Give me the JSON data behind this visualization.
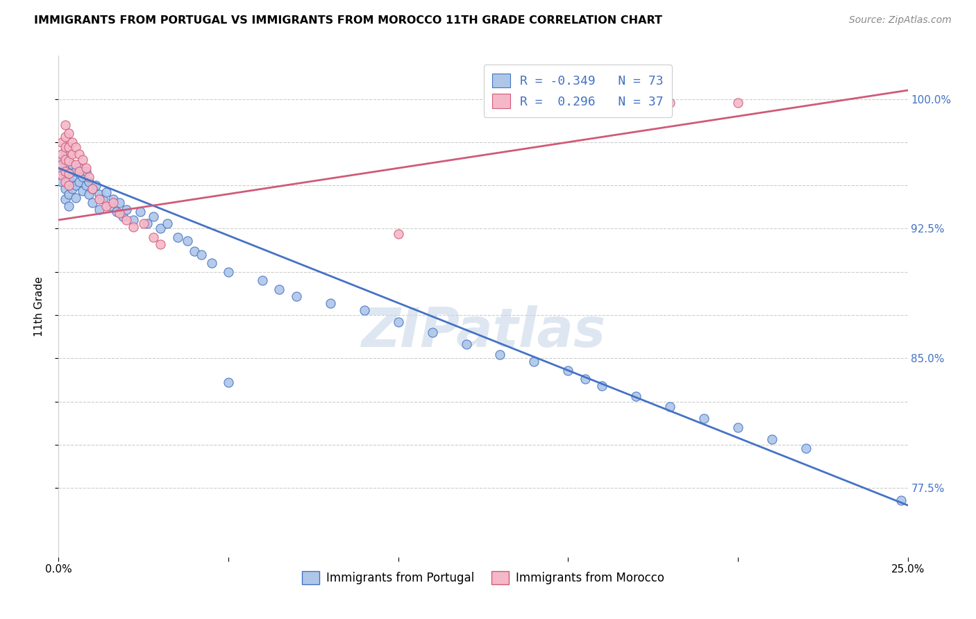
{
  "title": "IMMIGRANTS FROM PORTUGAL VS IMMIGRANTS FROM MOROCCO 11TH GRADE CORRELATION CHART",
  "source": "Source: ZipAtlas.com",
  "ylabel": "11th Grade",
  "legend_label_blue": "Immigrants from Portugal",
  "legend_label_pink": "Immigrants from Morocco",
  "watermark": "ZIPatlas",
  "blue_color": "#aec6e8",
  "pink_color": "#f5b8c8",
  "line_blue": "#4472c4",
  "line_pink": "#d05a78",
  "xmin": 0.0,
  "xmax": 0.25,
  "ymin": 0.735,
  "ymax": 1.025,
  "y_tick_positions": [
    0.775,
    0.8,
    0.825,
    0.85,
    0.875,
    0.9,
    0.925,
    0.95,
    0.975,
    1.0
  ],
  "y_tick_labels": [
    "77.5%",
    "",
    "",
    "85.0%",
    "",
    "",
    "92.5%",
    "",
    "",
    "100.0%"
  ],
  "x_ticks": [
    0.0,
    0.05,
    0.1,
    0.15,
    0.2,
    0.25
  ],
  "x_tick_labels": [
    "0.0%",
    "",
    "",
    "",
    "",
    "25.0%"
  ],
  "blue_line": {
    "x0": 0.0,
    "y0": 0.96,
    "x1": 0.25,
    "y1": 0.765
  },
  "pink_line": {
    "x0": 0.0,
    "y0": 0.93,
    "x1": 0.25,
    "y1": 1.005
  },
  "blue_points": [
    [
      0.001,
      0.965
    ],
    [
      0.001,
      0.958
    ],
    [
      0.001,
      0.952
    ],
    [
      0.002,
      0.97
    ],
    [
      0.002,
      0.963
    ],
    [
      0.002,
      0.957
    ],
    [
      0.002,
      0.948
    ],
    [
      0.002,
      0.942
    ],
    [
      0.003,
      0.968
    ],
    [
      0.003,
      0.96
    ],
    [
      0.003,
      0.953
    ],
    [
      0.003,
      0.945
    ],
    [
      0.003,
      0.938
    ],
    [
      0.004,
      0.962
    ],
    [
      0.004,
      0.955
    ],
    [
      0.004,
      0.948
    ],
    [
      0.005,
      0.958
    ],
    [
      0.005,
      0.95
    ],
    [
      0.005,
      0.943
    ],
    [
      0.006,
      0.96
    ],
    [
      0.006,
      0.952
    ],
    [
      0.007,
      0.955
    ],
    [
      0.007,
      0.947
    ],
    [
      0.008,
      0.958
    ],
    [
      0.008,
      0.95
    ],
    [
      0.009,
      0.952
    ],
    [
      0.009,
      0.945
    ],
    [
      0.01,
      0.948
    ],
    [
      0.01,
      0.94
    ],
    [
      0.011,
      0.95
    ],
    [
      0.012,
      0.945
    ],
    [
      0.012,
      0.936
    ],
    [
      0.013,
      0.942
    ],
    [
      0.014,
      0.946
    ],
    [
      0.015,
      0.938
    ],
    [
      0.016,
      0.942
    ],
    [
      0.017,
      0.935
    ],
    [
      0.018,
      0.94
    ],
    [
      0.019,
      0.932
    ],
    [
      0.02,
      0.936
    ],
    [
      0.022,
      0.93
    ],
    [
      0.024,
      0.935
    ],
    [
      0.026,
      0.928
    ],
    [
      0.028,
      0.932
    ],
    [
      0.03,
      0.925
    ],
    [
      0.032,
      0.928
    ],
    [
      0.035,
      0.92
    ],
    [
      0.038,
      0.918
    ],
    [
      0.04,
      0.912
    ],
    [
      0.042,
      0.91
    ],
    [
      0.045,
      0.905
    ],
    [
      0.05,
      0.9
    ],
    [
      0.06,
      0.895
    ],
    [
      0.065,
      0.89
    ],
    [
      0.07,
      0.886
    ],
    [
      0.08,
      0.882
    ],
    [
      0.09,
      0.878
    ],
    [
      0.1,
      0.871
    ],
    [
      0.11,
      0.865
    ],
    [
      0.12,
      0.858
    ],
    [
      0.13,
      0.852
    ],
    [
      0.14,
      0.848
    ],
    [
      0.15,
      0.843
    ],
    [
      0.155,
      0.838
    ],
    [
      0.16,
      0.834
    ],
    [
      0.17,
      0.828
    ],
    [
      0.18,
      0.822
    ],
    [
      0.19,
      0.815
    ],
    [
      0.2,
      0.81
    ],
    [
      0.21,
      0.803
    ],
    [
      0.22,
      0.798
    ],
    [
      0.05,
      0.836
    ],
    [
      0.248,
      0.768
    ]
  ],
  "pink_points": [
    [
      0.001,
      0.975
    ],
    [
      0.001,
      0.968
    ],
    [
      0.001,
      0.962
    ],
    [
      0.001,
      0.956
    ],
    [
      0.002,
      0.985
    ],
    [
      0.002,
      0.978
    ],
    [
      0.002,
      0.972
    ],
    [
      0.002,
      0.965
    ],
    [
      0.002,
      0.958
    ],
    [
      0.002,
      0.952
    ],
    [
      0.003,
      0.98
    ],
    [
      0.003,
      0.972
    ],
    [
      0.003,
      0.964
    ],
    [
      0.003,
      0.957
    ],
    [
      0.003,
      0.95
    ],
    [
      0.004,
      0.975
    ],
    [
      0.004,
      0.968
    ],
    [
      0.005,
      0.972
    ],
    [
      0.005,
      0.962
    ],
    [
      0.006,
      0.968
    ],
    [
      0.006,
      0.958
    ],
    [
      0.007,
      0.965
    ],
    [
      0.008,
      0.96
    ],
    [
      0.009,
      0.955
    ],
    [
      0.01,
      0.948
    ],
    [
      0.012,
      0.942
    ],
    [
      0.014,
      0.938
    ],
    [
      0.016,
      0.94
    ],
    [
      0.018,
      0.934
    ],
    [
      0.02,
      0.93
    ],
    [
      0.022,
      0.926
    ],
    [
      0.025,
      0.928
    ],
    [
      0.028,
      0.92
    ],
    [
      0.03,
      0.916
    ],
    [
      0.1,
      0.922
    ],
    [
      0.18,
      0.998
    ],
    [
      0.2,
      0.998
    ]
  ]
}
